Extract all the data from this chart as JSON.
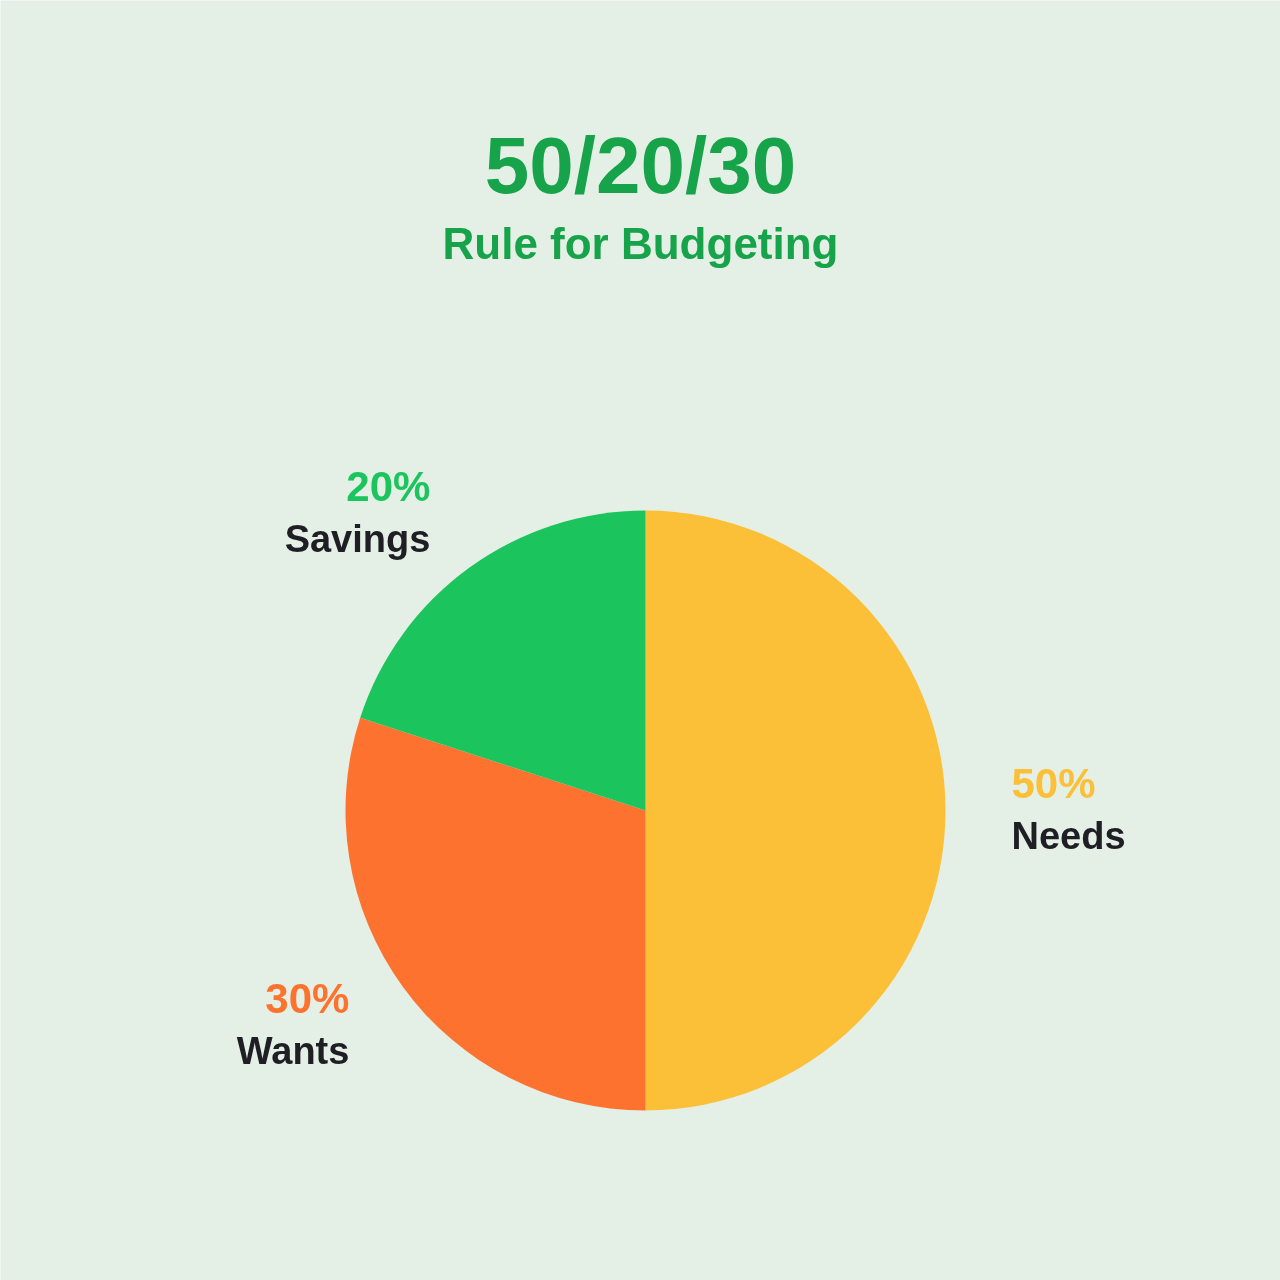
{
  "chart_data": {
    "type": "pie",
    "title": "50/20/30",
    "subtitle": "Rule for Budgeting",
    "categories": [
      "Needs",
      "Wants",
      "Savings"
    ],
    "values": [
      50,
      30,
      20
    ],
    "colors": [
      "#fbbf38",
      "#fd722e",
      "#1bc45d"
    ],
    "value_labels": [
      "50%",
      "30%",
      "20%"
    ]
  }
}
